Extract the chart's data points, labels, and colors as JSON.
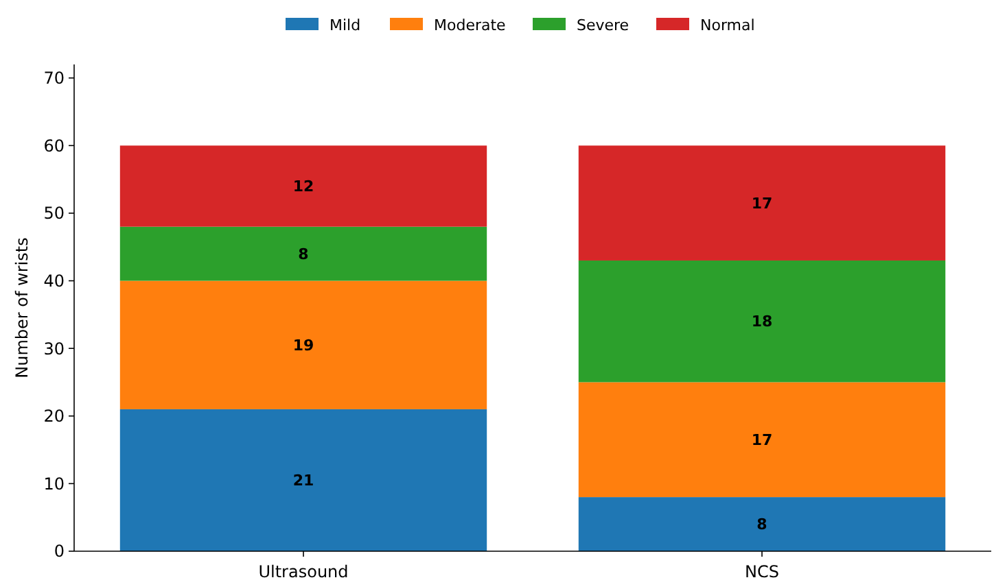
{
  "chart_data": {
    "type": "bar",
    "stacked": true,
    "ylabel": "Number of wrists",
    "categories": [
      "Ultrasound",
      "NCS"
    ],
    "series": [
      {
        "name": "Mild",
        "color": "#1f77b4",
        "values": [
          21,
          8
        ]
      },
      {
        "name": "Moderate",
        "color": "#ff7f0e",
        "values": [
          19,
          17
        ]
      },
      {
        "name": "Severe",
        "color": "#2ca02c",
        "values": [
          8,
          18
        ]
      },
      {
        "name": "Normal",
        "color": "#d62728",
        "values": [
          12,
          17
        ]
      }
    ],
    "ylim": [
      0,
      72
    ],
    "yticks": [
      0,
      10,
      20,
      30,
      40,
      50,
      60,
      70
    ],
    "data_labels": true,
    "legend": "top",
    "grid": false
  }
}
